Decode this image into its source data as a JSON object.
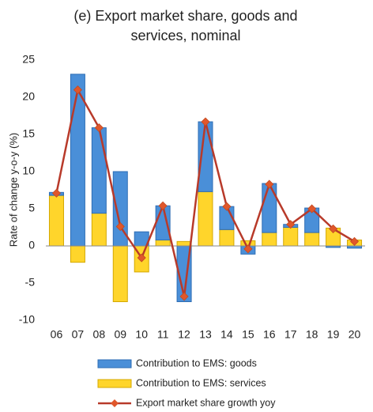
{
  "chart_data": {
    "type": "stacked-bar-line",
    "title": "(e) Export market share, goods and services, nominal",
    "y_label": "Rate of change y-o-y (%)",
    "categories": [
      "06",
      "07",
      "08",
      "09",
      "10",
      "11",
      "12",
      "13",
      "14",
      "15",
      "16",
      "17",
      "18",
      "19",
      "20"
    ],
    "series": [
      {
        "name": "Contribution to EMS: goods",
        "type": "bar",
        "color": "#4a8fd8",
        "values": [
          0.4,
          23.1,
          11.5,
          10.0,
          1.9,
          4.6,
          -7.5,
          9.4,
          3.1,
          -1.1,
          6.6,
          0.4,
          3.3,
          -0.2,
          -0.3
        ]
      },
      {
        "name": "Contribution to EMS: services",
        "type": "bar",
        "color": "#ffd52b",
        "values": [
          6.8,
          -2.2,
          4.4,
          -7.5,
          -3.5,
          0.8,
          0.6,
          7.3,
          2.2,
          0.7,
          1.8,
          2.5,
          1.8,
          2.4,
          0.8
        ]
      },
      {
        "name": "Export market share growth yoy",
        "type": "line",
        "color": "#b83a2a",
        "values": [
          7.1,
          21.0,
          15.9,
          2.6,
          -1.6,
          5.4,
          -6.8,
          16.7,
          5.3,
          -0.4,
          8.3,
          2.9,
          5.0,
          2.3,
          0.6
        ]
      }
    ],
    "ylim": [
      -10,
      25
    ],
    "yticks": [
      -10,
      -5,
      0,
      5,
      10,
      15,
      20,
      25
    ]
  }
}
